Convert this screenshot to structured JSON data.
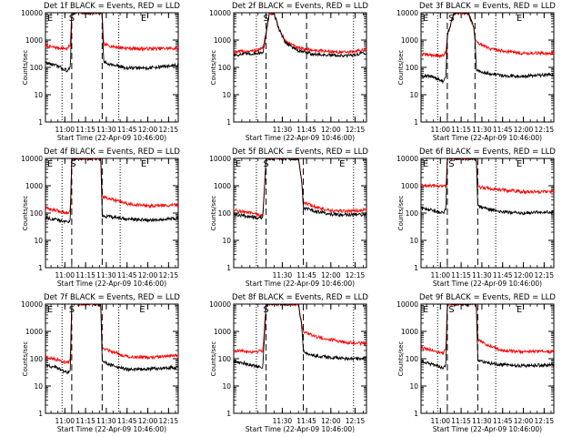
{
  "panel_titles": [
    "Det 1f BLACK = Events, RED = LLD",
    "Det 2f BLACK = Events, RED = LLD",
    "Det 3f BLACK = Events, RED = LLD",
    "Det 4f BLACK = Events, RED = LLD",
    "Det 5f BLACK = Events, RED = LLD",
    "Det 6f BLACK = Events, RED = LLD",
    "Det 7f BLACK = Events, RED = LLD",
    "Det 8f BLACK = Events, RED = LLD",
    "Det 9f BLACK = Events, RED = LLD"
  ],
  "axes": {
    "ylabel": "Counts/sec",
    "xlabel": "Start Time (22-Apr-09 10:46:00)",
    "y_ticks": [
      "1",
      "10",
      "100",
      "1000",
      "10000"
    ],
    "x_ticks_long": [
      "11:00",
      "11:15",
      "11:30",
      "11:45",
      "12:00",
      "12:15"
    ],
    "x_ticks_short": [
      "11:30",
      "11:45",
      "12:00",
      "12:15"
    ]
  },
  "markers": {
    "E": "E",
    "S": "S"
  },
  "colors": {
    "events": "#000000",
    "lld": "#ff0000"
  },
  "chart_data": [
    {
      "type": "line",
      "x_range": [
        "10:46",
        "12:22"
      ],
      "ylim": [
        1,
        10000
      ],
      "yscale": "log",
      "x_ticks": [
        "11:00",
        "11:15",
        "11:30",
        "11:45",
        "12:00",
        "12:15"
      ],
      "dotted_lines": [
        "10:58",
        "11:39"
      ],
      "dashed_lines": [
        "11:05",
        "11:27"
      ],
      "markers": [
        {
          "label": "E",
          "x": "10:46"
        },
        {
          "label": "S",
          "x": "11:05"
        },
        {
          "label": "E",
          "x": "11:57"
        }
      ],
      "series": [
        {
          "color": "red",
          "x": [
            "10:46",
            "10:55",
            "11:02",
            "11:04",
            "11:05",
            "11:10",
            "11:18",
            "11:25",
            "11:27",
            "11:28",
            "11:35",
            "11:45",
            "12:00",
            "12:22"
          ],
          "y": [
            600,
            520,
            480,
            700,
            10000,
            10000,
            10000,
            10000,
            10000,
            700,
            580,
            500,
            480,
            500
          ]
        },
        {
          "color": "black",
          "x": [
            "10:46",
            "10:55",
            "11:02",
            "11:04",
            "11:05",
            "11:10",
            "11:18",
            "11:25",
            "11:27",
            "11:28",
            "11:35",
            "11:45",
            "12:00",
            "12:22"
          ],
          "y": [
            150,
            110,
            75,
            95,
            10000,
            10000,
            10000,
            10000,
            10000,
            160,
            120,
            95,
            95,
            120
          ]
        }
      ]
    },
    {
      "type": "line",
      "x_range": [
        "11:00",
        "12:22"
      ],
      "ylim": [
        1,
        10000
      ],
      "yscale": "log",
      "x_ticks": [
        "11:30",
        "11:45",
        "12:00",
        "12:15"
      ],
      "dotted_lines": [
        "11:14",
        "12:14"
      ],
      "dashed_lines": [
        "11:20",
        "11:45"
      ],
      "markers": [
        {
          "label": "S",
          "x": "11:20"
        }
      ],
      "series": [
        {
          "color": "red",
          "x": [
            "11:00",
            "11:05",
            "11:12",
            "11:18",
            "11:20",
            "11:22",
            "11:25",
            "11:28",
            "11:32",
            "11:40",
            "11:50",
            "12:00",
            "12:10",
            "12:22"
          ],
          "y": [
            350,
            380,
            400,
            500,
            1800,
            10000,
            9000,
            2500,
            900,
            500,
            420,
            380,
            350,
            450
          ]
        },
        {
          "color": "black",
          "x": [
            "11:00",
            "11:05",
            "11:12",
            "11:18",
            "11:20",
            "11:22",
            "11:25",
            "11:28",
            "11:32",
            "11:40",
            "11:50",
            "12:00",
            "12:10",
            "12:22"
          ],
          "y": [
            280,
            300,
            320,
            350,
            1500,
            10000,
            9000,
            2500,
            800,
            400,
            300,
            280,
            260,
            350
          ]
        }
      ]
    },
    {
      "type": "line",
      "x_range": [
        "10:46",
        "12:22"
      ],
      "ylim": [
        1,
        10000
      ],
      "yscale": "log",
      "x_ticks": [
        "11:00",
        "11:15",
        "11:30",
        "11:45",
        "12:00",
        "12:15"
      ],
      "dotted_lines": [
        "10:58",
        "11:40"
      ],
      "dashed_lines": [
        "11:05",
        "11:25"
      ],
      "markers": [
        {
          "label": "E",
          "x": "10:46"
        },
        {
          "label": "S",
          "x": "11:08"
        },
        {
          "label": "E",
          "x": "11:57"
        }
      ],
      "series": [
        {
          "color": "red",
          "x": [
            "10:46",
            "10:55",
            "11:02",
            "11:04",
            "11:05",
            "11:10",
            "11:20",
            "11:24",
            "11:25",
            "11:26",
            "11:35",
            "11:45",
            "12:00",
            "12:22"
          ],
          "y": [
            300,
            280,
            260,
            350,
            1500,
            10000,
            10000,
            3000,
            1200,
            800,
            500,
            400,
            330,
            330
          ]
        },
        {
          "color": "black",
          "x": [
            "10:46",
            "10:55",
            "11:02",
            "11:04",
            "11:05",
            "11:10",
            "11:20",
            "11:24",
            "11:25",
            "11:26",
            "11:35",
            "11:45",
            "12:00",
            "12:22"
          ],
          "y": [
            50,
            45,
            30,
            45,
            1500,
            10000,
            10000,
            3000,
            1200,
            80,
            60,
            50,
            48,
            55
          ]
        }
      ]
    },
    {
      "type": "line",
      "x_range": [
        "10:46",
        "12:22"
      ],
      "ylim": [
        1,
        10000
      ],
      "yscale": "log",
      "x_ticks": [
        "11:00",
        "11:15",
        "11:30",
        "11:45",
        "12:00",
        "12:15"
      ],
      "dotted_lines": [
        "10:58",
        "11:40"
      ],
      "dashed_lines": [
        "11:05",
        "11:27"
      ],
      "markers": [
        {
          "label": "E",
          "x": "10:46"
        },
        {
          "label": "S",
          "x": "11:06"
        },
        {
          "label": "E",
          "x": "11:57"
        }
      ],
      "series": [
        {
          "color": "red",
          "x": [
            "10:46",
            "10:55",
            "11:02",
            "11:04",
            "11:05",
            "11:10",
            "11:18",
            "11:26",
            "11:27",
            "11:35",
            "11:45",
            "12:00",
            "12:22"
          ],
          "y": [
            150,
            120,
            100,
            130,
            10000,
            10000,
            10000,
            10000,
            400,
            300,
            220,
            180,
            200
          ]
        },
        {
          "color": "black",
          "x": [
            "10:46",
            "10:55",
            "11:02",
            "11:04",
            "11:05",
            "11:10",
            "11:18",
            "11:26",
            "11:27",
            "11:35",
            "11:45",
            "12:00",
            "12:22"
          ],
          "y": [
            70,
            55,
            45,
            60,
            10000,
            10000,
            10000,
            10000,
            80,
            70,
            60,
            55,
            65
          ]
        }
      ]
    },
    {
      "type": "line",
      "x_range": [
        "11:00",
        "12:22"
      ],
      "ylim": [
        1,
        10000
      ],
      "yscale": "log",
      "x_ticks": [
        "11:30",
        "11:45",
        "12:00",
        "12:15"
      ],
      "dotted_lines": [
        "11:14",
        "12:14"
      ],
      "dashed_lines": [
        "11:20",
        "11:43"
      ],
      "markers": [
        {
          "label": "E",
          "x": "11:00"
        },
        {
          "label": "S",
          "x": "11:20"
        },
        {
          "label": "E",
          "x": "12:07"
        }
      ],
      "series": [
        {
          "color": "red",
          "x": [
            "11:00",
            "11:06",
            "11:12",
            "11:18",
            "11:20",
            "11:22",
            "11:30",
            "11:40",
            "11:42",
            "11:43",
            "11:50",
            "12:00",
            "12:10",
            "12:22"
          ],
          "y": [
            130,
            110,
            95,
            80,
            10000,
            10000,
            10000,
            10000,
            1500,
            250,
            170,
            120,
            115,
            130
          ]
        },
        {
          "color": "black",
          "x": [
            "11:00",
            "11:06",
            "11:12",
            "11:18",
            "11:20",
            "11:22",
            "11:30",
            "11:40",
            "11:42",
            "11:43",
            "11:50",
            "12:00",
            "12:10",
            "12:22"
          ],
          "y": [
            90,
            80,
            70,
            65,
            10000,
            10000,
            10000,
            10000,
            1500,
            150,
            120,
            90,
            85,
            90
          ]
        }
      ]
    },
    {
      "type": "line",
      "x_range": [
        "10:46",
        "12:22"
      ],
      "ylim": [
        1,
        10000
      ],
      "yscale": "log",
      "x_ticks": [
        "11:00",
        "11:15",
        "11:30",
        "11:45",
        "12:00",
        "12:15"
      ],
      "dotted_lines": [
        "10:58",
        "11:40"
      ],
      "dashed_lines": [
        "11:05",
        "11:27"
      ],
      "markers": [
        {
          "label": "E",
          "x": "10:46"
        },
        {
          "label": "S",
          "x": "11:08"
        },
        {
          "label": "E",
          "x": "11:57"
        }
      ],
      "series": [
        {
          "color": "red",
          "x": [
            "10:46",
            "10:55",
            "11:02",
            "11:04",
            "11:05",
            "11:10",
            "11:20",
            "11:26",
            "11:27",
            "11:35",
            "11:45",
            "12:00",
            "12:22"
          ],
          "y": [
            1000,
            1000,
            950,
            1000,
            10000,
            10000,
            10000,
            10000,
            900,
            800,
            700,
            600,
            600
          ]
        },
        {
          "color": "black",
          "x": [
            "10:46",
            "10:55",
            "11:02",
            "11:04",
            "11:05",
            "11:10",
            "11:20",
            "11:26",
            "11:27",
            "11:35",
            "11:45",
            "12:00",
            "12:22"
          ],
          "y": [
            150,
            120,
            100,
            140,
            10000,
            10000,
            10000,
            10000,
            180,
            140,
            110,
            100,
            110
          ]
        }
      ]
    },
    {
      "type": "line",
      "x_range": [
        "10:46",
        "12:22"
      ],
      "ylim": [
        1,
        10000
      ],
      "yscale": "log",
      "x_ticks": [
        "11:00",
        "11:15",
        "11:30",
        "11:45",
        "12:00",
        "12:15"
      ],
      "dotted_lines": [
        "10:58",
        "11:39"
      ],
      "dashed_lines": [
        "11:05",
        "11:27"
      ],
      "markers": [
        {
          "label": "E",
          "x": "10:46"
        },
        {
          "label": "S",
          "x": "11:05"
        },
        {
          "label": "E",
          "x": "11:56"
        }
      ],
      "series": [
        {
          "color": "red",
          "x": [
            "10:46",
            "10:55",
            "11:02",
            "11:04",
            "11:05",
            "11:10",
            "11:18",
            "11:26",
            "11:27",
            "11:35",
            "11:45",
            "12:00",
            "12:22"
          ],
          "y": [
            120,
            90,
            70,
            95,
            10000,
            10000,
            10000,
            10000,
            250,
            180,
            120,
            110,
            130
          ]
        },
        {
          "color": "black",
          "x": [
            "10:46",
            "10:55",
            "11:02",
            "11:04",
            "11:05",
            "11:10",
            "11:18",
            "11:26",
            "11:27",
            "11:35",
            "11:45",
            "12:00",
            "12:22"
          ],
          "y": [
            60,
            45,
            30,
            40,
            10000,
            10000,
            10000,
            10000,
            80,
            55,
            40,
            42,
            48
          ]
        }
      ]
    },
    {
      "type": "line",
      "x_range": [
        "11:00",
        "12:22"
      ],
      "ylim": [
        1,
        10000
      ],
      "yscale": "log",
      "x_ticks": [
        "11:30",
        "11:45",
        "12:00",
        "12:15"
      ],
      "dotted_lines": [
        "11:14",
        "12:14"
      ],
      "dashed_lines": [
        "11:20",
        "11:43"
      ],
      "markers": [
        {
          "label": "S",
          "x": "11:20"
        }
      ],
      "series": [
        {
          "color": "red",
          "x": [
            "11:00",
            "11:06",
            "11:12",
            "11:18",
            "11:20",
            "11:22",
            "11:30",
            "11:40",
            "11:42",
            "11:43",
            "11:50",
            "12:00",
            "12:10",
            "12:22"
          ],
          "y": [
            200,
            190,
            180,
            200,
            10000,
            10000,
            10000,
            10000,
            2000,
            1000,
            650,
            500,
            400,
            350
          ]
        },
        {
          "color": "black",
          "x": [
            "11:00",
            "11:06",
            "11:12",
            "11:18",
            "11:20",
            "11:22",
            "11:30",
            "11:40",
            "11:42",
            "11:43",
            "11:50",
            "12:00",
            "12:10",
            "12:22"
          ],
          "y": [
            80,
            70,
            55,
            50,
            10000,
            10000,
            10000,
            10000,
            1500,
            180,
            130,
            110,
            100,
            105
          ]
        }
      ]
    },
    {
      "type": "line",
      "x_range": [
        "10:46",
        "12:22"
      ],
      "ylim": [
        1,
        10000
      ],
      "yscale": "log",
      "x_ticks": [
        "11:00",
        "11:15",
        "11:30",
        "11:45",
        "12:00",
        "12:15"
      ],
      "dotted_lines": [
        "10:58",
        "11:40"
      ],
      "dashed_lines": [
        "11:05",
        "11:27"
      ],
      "markers": [
        {
          "label": "E",
          "x": "10:46"
        },
        {
          "label": "S",
          "x": "11:08"
        },
        {
          "label": "E",
          "x": "11:57"
        }
      ],
      "series": [
        {
          "color": "red",
          "x": [
            "10:46",
            "10:55",
            "11:02",
            "11:04",
            "11:05",
            "11:10",
            "11:20",
            "11:26",
            "11:27",
            "11:35",
            "11:45",
            "12:00",
            "12:22"
          ],
          "y": [
            250,
            200,
            150,
            250,
            10000,
            10000,
            10000,
            10000,
            500,
            300,
            200,
            180,
            180
          ]
        },
        {
          "color": "black",
          "x": [
            "10:46",
            "10:55",
            "11:02",
            "11:04",
            "11:05",
            "11:10",
            "11:20",
            "11:26",
            "11:27",
            "11:35",
            "11:45",
            "12:00",
            "12:22"
          ],
          "y": [
            80,
            60,
            45,
            60,
            10000,
            10000,
            10000,
            10000,
            90,
            70,
            60,
            55,
            60
          ]
        }
      ]
    }
  ]
}
